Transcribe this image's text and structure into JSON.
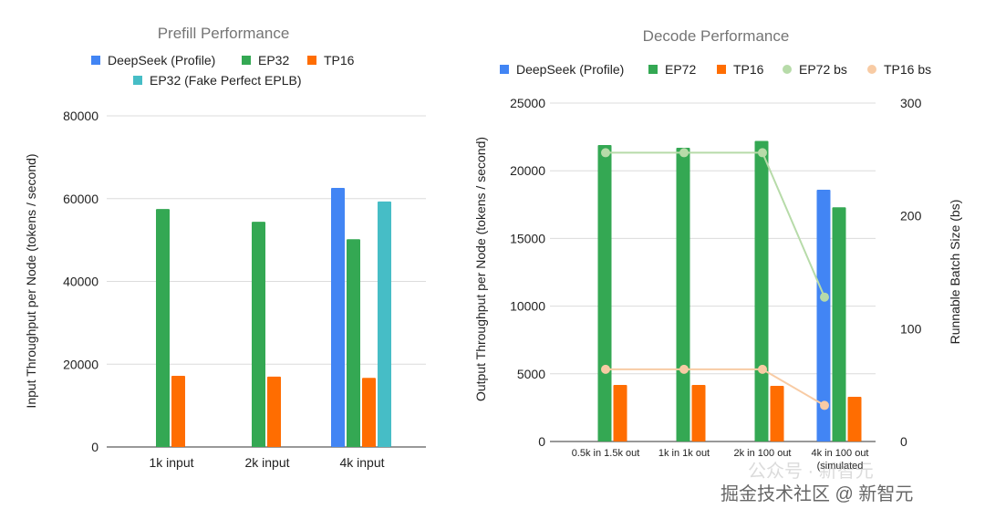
{
  "chart_data": [
    {
      "type": "bar",
      "title": "Prefill Performance",
      "ylabel": "Input Throughput per Node (tokens / second)",
      "xlabel": "",
      "ylim": [
        0,
        80000
      ],
      "yticks": [
        "0",
        "20000",
        "40000",
        "60000",
        "80000"
      ],
      "grid": true,
      "legend_position": "top",
      "categories": [
        "1k input",
        "2k input",
        "4k input"
      ],
      "series": [
        {
          "name": "DeepSeek (Profile)",
          "color": "#4285f4",
          "values": [
            null,
            null,
            62600
          ]
        },
        {
          "name": "EP32",
          "color": "#34a853",
          "values": [
            57500,
            54400,
            50200
          ]
        },
        {
          "name": "TP16",
          "color": "#ff6d01",
          "values": [
            17200,
            17000,
            16700
          ]
        },
        {
          "name": "EP32 (Fake Perfect EPLB)",
          "color": "#46bdc6",
          "values": [
            null,
            null,
            59300
          ]
        }
      ]
    },
    {
      "type": "bar",
      "title": "Decode Performance",
      "ylabel": "Output Throughput per Node (tokens / second)",
      "y2label": "Runnable Batch Size (bs)",
      "xlabel": "",
      "ylim": [
        0,
        25000
      ],
      "y2lim": [
        0,
        300
      ],
      "yticks": [
        "0",
        "5000",
        "10000",
        "15000",
        "20000",
        "25000"
      ],
      "y2ticks": [
        "0",
        "100",
        "200",
        "300"
      ],
      "grid": true,
      "legend_position": "top",
      "categories": [
        "0.5k in 1.5k out",
        "1k in 1k out",
        "2k in 100 out",
        "4k in 100 out"
      ],
      "category_notes": [
        "",
        "",
        "",
        "(simulated"
      ],
      "series": [
        {
          "name": "DeepSeek (Profile)",
          "type": "bar",
          "color": "#4285f4",
          "values": [
            null,
            null,
            null,
            18600
          ]
        },
        {
          "name": "EP72",
          "type": "bar",
          "color": "#34a853",
          "values": [
            21900,
            21700,
            22200,
            17300
          ]
        },
        {
          "name": "TP16",
          "type": "bar",
          "color": "#ff6d01",
          "values": [
            4180,
            4180,
            4110,
            3300
          ]
        },
        {
          "name": "EP72 bs",
          "type": "line",
          "axis": "right",
          "color": "#b7dba9",
          "values": [
            256,
            256,
            256,
            128
          ]
        },
        {
          "name": "TP16 bs",
          "type": "line",
          "axis": "right",
          "color": "#f8cba4",
          "values": [
            64,
            64,
            64,
            32
          ]
        }
      ]
    }
  ],
  "watermark": {
    "line1": "公众号 · 新智元",
    "line2": "掘金技术社区 @ 新智元"
  }
}
